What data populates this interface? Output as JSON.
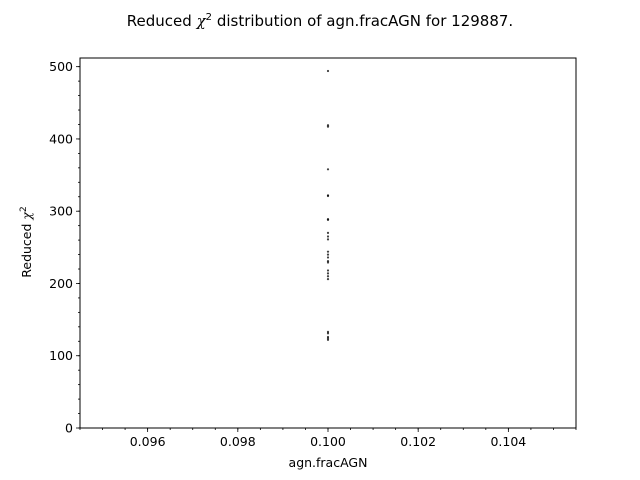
{
  "chart_data": {
    "type": "scatter",
    "title_prefix": "Reduced ",
    "title_symbol": "χ",
    "title_superscript": "2",
    "title_suffix": " distribution of agn.fracAGN for 129887.",
    "xlabel": "agn.fracAGN",
    "ylabel_prefix": "Reduced ",
    "ylabel_symbol": "χ",
    "ylabel_superscript": "2",
    "xlim": [
      0.0945,
      0.1055
    ],
    "ylim": [
      0,
      512
    ],
    "x_ticks": [
      0.096,
      0.098,
      0.1,
      0.102,
      0.104
    ],
    "x_tick_labels": [
      "0.096",
      "0.098",
      "0.100",
      "0.102",
      "0.104"
    ],
    "y_ticks": [
      0,
      100,
      200,
      300,
      400,
      500
    ],
    "y_tick_labels": [
      "0",
      "100",
      "200",
      "300",
      "400",
      "500"
    ],
    "y_minor_step": 20,
    "x_minor_step": 0.0005,
    "grid": false,
    "marker_color": "#000000",
    "points": [
      {
        "x": 0.1,
        "y": 494
      },
      {
        "x": 0.1,
        "y": 419
      },
      {
        "x": 0.1,
        "y": 417
      },
      {
        "x": 0.1,
        "y": 358
      },
      {
        "x": 0.1,
        "y": 322
      },
      {
        "x": 0.1,
        "y": 321
      },
      {
        "x": 0.1,
        "y": 289
      },
      {
        "x": 0.1,
        "y": 288
      },
      {
        "x": 0.1,
        "y": 270
      },
      {
        "x": 0.1,
        "y": 265
      },
      {
        "x": 0.1,
        "y": 261
      },
      {
        "x": 0.1,
        "y": 244
      },
      {
        "x": 0.1,
        "y": 240
      },
      {
        "x": 0.1,
        "y": 236
      },
      {
        "x": 0.1,
        "y": 231
      },
      {
        "x": 0.1,
        "y": 229
      },
      {
        "x": 0.1,
        "y": 218
      },
      {
        "x": 0.1,
        "y": 214
      },
      {
        "x": 0.1,
        "y": 210
      },
      {
        "x": 0.1,
        "y": 206
      },
      {
        "x": 0.1,
        "y": 133
      },
      {
        "x": 0.1,
        "y": 131
      },
      {
        "x": 0.1,
        "y": 126
      },
      {
        "x": 0.1,
        "y": 124
      },
      {
        "x": 0.1,
        "y": 122
      }
    ]
  }
}
